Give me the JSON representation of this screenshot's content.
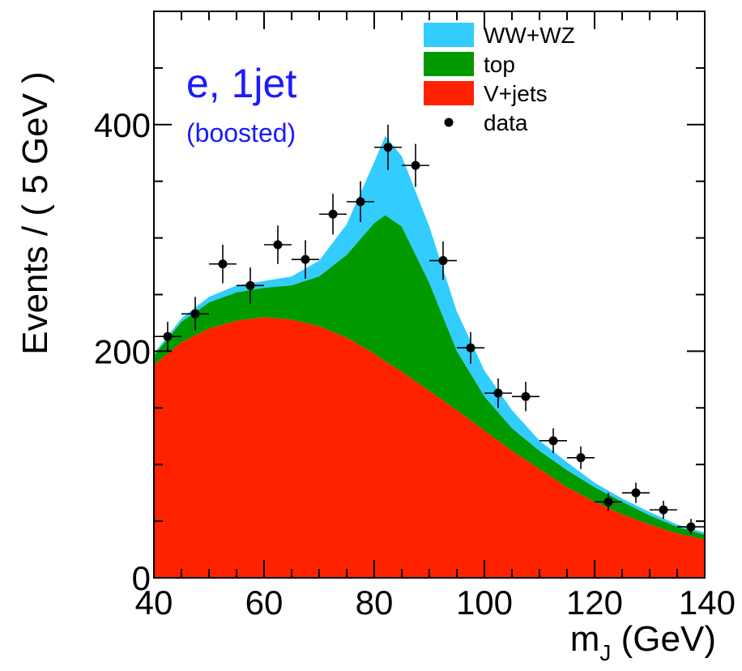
{
  "chart_data": {
    "type": "area",
    "xlabel_main": "m",
    "xlabel_sub": "J",
    "xlabel_unit": " (GeV)",
    "ylabel": "Events / ( 5 GeV )",
    "xlim": [
      40,
      140
    ],
    "ylim": [
      0,
      500
    ],
    "x_ticks": [
      40,
      60,
      80,
      100,
      120,
      140
    ],
    "y_ticks": [
      0,
      200,
      400
    ],
    "annotations": {
      "main": "e, 1jet",
      "sub": "(boosted)"
    },
    "legend": [
      {
        "label": "WW+WZ",
        "color": "#33ccff",
        "kind": "box"
      },
      {
        "label": "top",
        "color": "#009900",
        "kind": "box"
      },
      {
        "label": "V+jets",
        "color": "#ff2200",
        "kind": "box"
      },
      {
        "label": "data",
        "color": "#000000",
        "kind": "marker"
      }
    ],
    "stack": {
      "x": [
        40,
        45,
        50,
        55,
        60,
        65,
        70,
        75,
        80,
        82,
        85,
        90,
        95,
        100,
        105,
        110,
        115,
        120,
        125,
        130,
        135,
        140
      ],
      "vjets": [
        188,
        208,
        220,
        227,
        230,
        228,
        222,
        212,
        198,
        191,
        182,
        165,
        148,
        130,
        112,
        96,
        80,
        67,
        56,
        47,
        39,
        34
      ],
      "vjets_plus_top": [
        196,
        226,
        243,
        252,
        256,
        258,
        266,
        285,
        313,
        320,
        310,
        260,
        200,
        160,
        132,
        112,
        95,
        80,
        67,
        55,
        45,
        38
      ],
      "total": [
        198,
        229,
        248,
        258,
        262,
        266,
        280,
        312,
        367,
        390,
        372,
        310,
        235,
        183,
        148,
        121,
        102,
        84,
        70,
        58,
        47,
        40
      ]
    },
    "data_points": [
      {
        "x": 42.5,
        "y": 213,
        "err": 13
      },
      {
        "x": 47.5,
        "y": 233,
        "err": 15
      },
      {
        "x": 52.5,
        "y": 277,
        "err": 17
      },
      {
        "x": 57.5,
        "y": 258,
        "err": 16
      },
      {
        "x": 62.5,
        "y": 294,
        "err": 17
      },
      {
        "x": 67.5,
        "y": 281,
        "err": 17
      },
      {
        "x": 72.5,
        "y": 321,
        "err": 18
      },
      {
        "x": 77.5,
        "y": 332,
        "err": 18
      },
      {
        "x": 82.5,
        "y": 380,
        "err": 20
      },
      {
        "x": 87.5,
        "y": 364,
        "err": 19
      },
      {
        "x": 92.5,
        "y": 280,
        "err": 17
      },
      {
        "x": 97.5,
        "y": 203,
        "err": 14
      },
      {
        "x": 102.5,
        "y": 163,
        "err": 13
      },
      {
        "x": 107.5,
        "y": 160,
        "err": 13
      },
      {
        "x": 112.5,
        "y": 121,
        "err": 11
      },
      {
        "x": 117.5,
        "y": 106,
        "err": 10
      },
      {
        "x": 122.5,
        "y": 67,
        "err": 8
      },
      {
        "x": 127.5,
        "y": 75,
        "err": 9
      },
      {
        "x": 132.5,
        "y": 60,
        "err": 8
      },
      {
        "x": 137.5,
        "y": 45,
        "err": 7
      }
    ]
  }
}
